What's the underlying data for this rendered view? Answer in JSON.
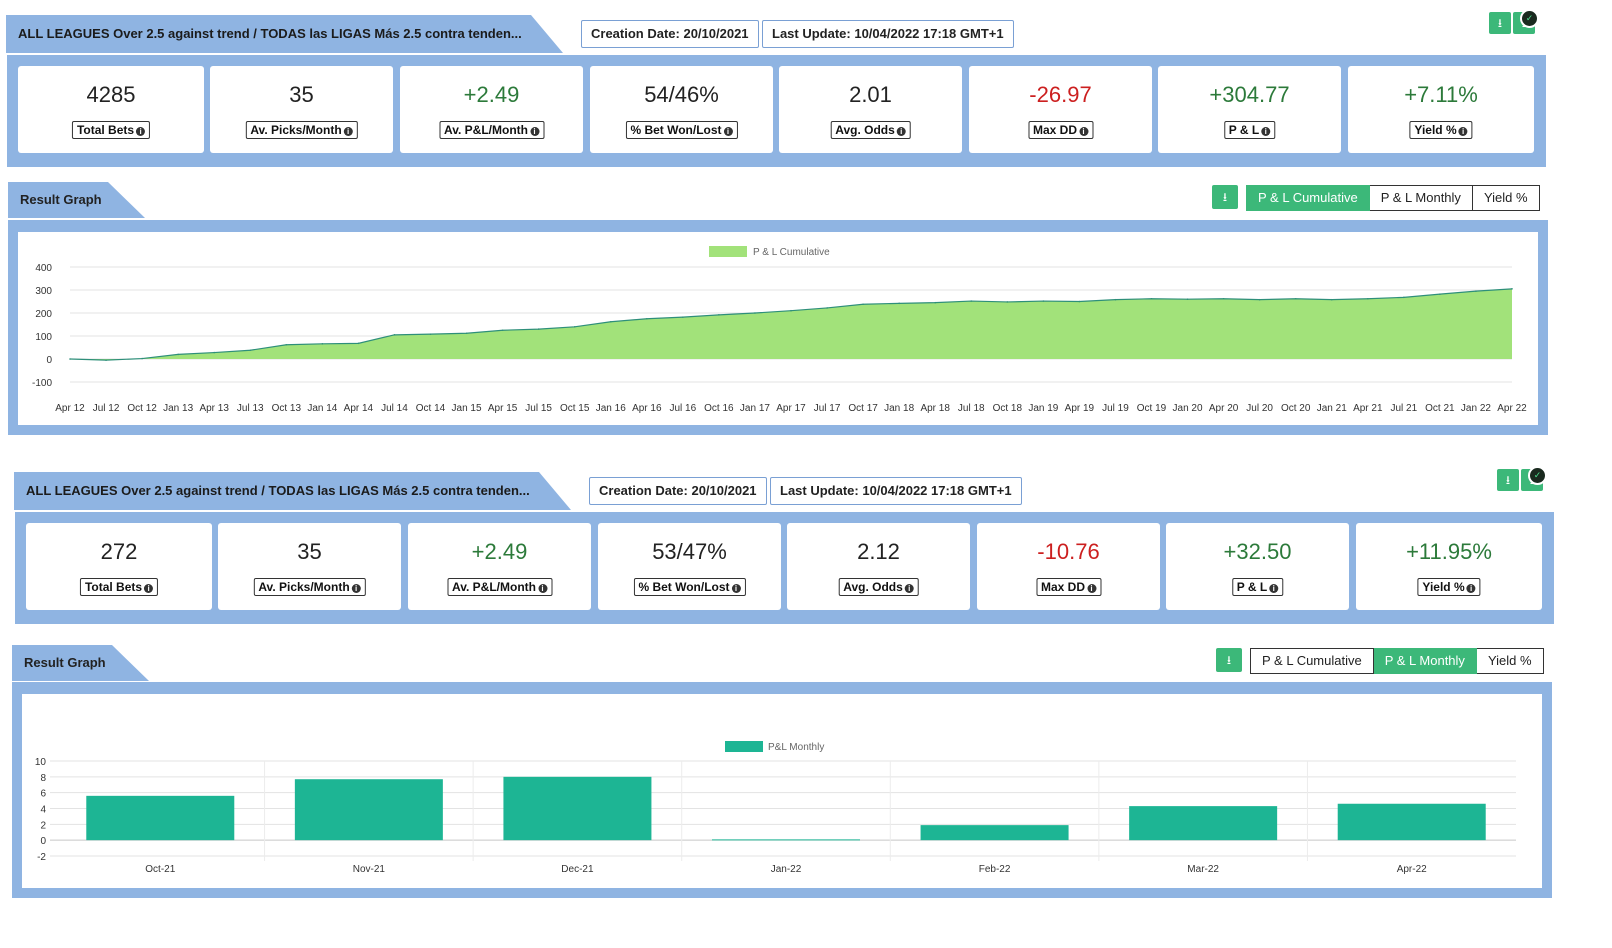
{
  "top": {
    "title": "ALL LEAGUES Over 2.5 against trend / TODAS las LIGAS Más 2.5 contra tenden...",
    "creation_date": "Creation Date: 20/10/2021",
    "last_update": "Last Update: 10/04/2022 17:18 GMT+1",
    "download_icon": "download-icon",
    "check_icon": "check-icon",
    "stats": [
      {
        "value": "4285",
        "label": "Total Bets",
        "tone": "neutral"
      },
      {
        "value": "35",
        "label": "Av. Picks/Month",
        "tone": "neutral"
      },
      {
        "value": "+2.49",
        "label": "Av. P&L/Month",
        "tone": "pos"
      },
      {
        "value": "54/46%",
        "label": "% Bet Won/Lost",
        "tone": "neutral"
      },
      {
        "value": "2.01",
        "label": "Avg. Odds",
        "tone": "neutral"
      },
      {
        "value": "-26.97",
        "label": "Max DD",
        "tone": "neg"
      },
      {
        "value": "+304.77",
        "label": "P & L",
        "tone": "pos"
      },
      {
        "value": "+7.11%",
        "label": "Yield %",
        "tone": "pos"
      }
    ],
    "result_title": "Result Graph",
    "toggles": [
      "P & L Cumulative",
      "P & L Monthly",
      "Yield %"
    ],
    "active_toggle": 0
  },
  "bottom": {
    "title": "ALL LEAGUES Over 2.5 against trend / TODAS las LIGAS Más 2.5 contra tenden...",
    "creation_date": "Creation Date: 20/10/2021",
    "last_update": "Last Update: 10/04/2022 17:18 GMT+1",
    "download_icon": "download-icon",
    "check_icon": "check-icon",
    "stats": [
      {
        "value": "272",
        "label": "Total Bets",
        "tone": "neutral"
      },
      {
        "value": "35",
        "label": "Av. Picks/Month",
        "tone": "neutral"
      },
      {
        "value": "+2.49",
        "label": "Av. P&L/Month",
        "tone": "pos"
      },
      {
        "value": "53/47%",
        "label": "% Bet Won/Lost",
        "tone": "neutral"
      },
      {
        "value": "2.12",
        "label": "Avg. Odds",
        "tone": "neutral"
      },
      {
        "value": "-10.76",
        "label": "Max DD",
        "tone": "neg"
      },
      {
        "value": "+32.50",
        "label": "P & L",
        "tone": "pos"
      },
      {
        "value": "+11.95%",
        "label": "Yield %",
        "tone": "pos"
      }
    ],
    "result_title": "Result Graph",
    "toggles": [
      "P & L Cumulative",
      "P & L Monthly",
      "Yield %"
    ],
    "active_toggle": 1
  },
  "colors": {
    "panel": "#8fb4e2",
    "accent_green": "#3cb879",
    "area_fill": "#a2e27a",
    "area_line": "#2e8f7a",
    "bar_fill": "#1db594",
    "positive": "#2c7a3a",
    "negative": "#cc1f1f"
  },
  "chart_data": [
    {
      "type": "area",
      "legend": "P & L Cumulative",
      "legend_position": "top-center",
      "grid": true,
      "ylim": [
        -100,
        400
      ],
      "yticks": [
        400,
        300,
        200,
        100,
        0,
        -100
      ],
      "xticks": [
        "Apr 12",
        "Jul 12",
        "Oct 12",
        "Jan 13",
        "Apr 13",
        "Jul 13",
        "Oct 13",
        "Jan 14",
        "Apr 14",
        "Jul 14",
        "Oct 14",
        "Jan 15",
        "Apr 15",
        "Jul 15",
        "Oct 15",
        "Jan 16",
        "Apr 16",
        "Jul 16",
        "Oct 16",
        "Jan 17",
        "Apr 17",
        "Jul 17",
        "Oct 17",
        "Jan 18",
        "Apr 18",
        "Jul 18",
        "Oct 18",
        "Jan 19",
        "Apr 19",
        "Jul 19",
        "Oct 19",
        "Jan 20",
        "Apr 20",
        "Jul 20",
        "Oct 20",
        "Jan 21",
        "Apr 21",
        "Jul 21",
        "Oct 21",
        "Jan 22",
        "Apr 22"
      ],
      "values": [
        0,
        -5,
        2,
        20,
        28,
        38,
        62,
        66,
        68,
        105,
        108,
        112,
        125,
        130,
        140,
        162,
        175,
        182,
        192,
        200,
        210,
        222,
        238,
        242,
        245,
        252,
        248,
        252,
        250,
        258,
        262,
        260,
        262,
        258,
        262,
        258,
        262,
        268,
        282,
        295,
        305
      ]
    },
    {
      "type": "bar",
      "legend": "P&L Monthly",
      "legend_position": "top-center",
      "grid": true,
      "ylim": [
        -2,
        10
      ],
      "yticks": [
        10,
        8,
        6,
        4,
        2,
        0,
        -2
      ],
      "categories": [
        "Oct-21",
        "Nov-21",
        "Dec-21",
        "Jan-22",
        "Feb-22",
        "Mar-22",
        "Apr-22"
      ],
      "values": [
        5.6,
        7.7,
        8.0,
        0.1,
        1.9,
        4.3,
        4.6
      ]
    }
  ]
}
